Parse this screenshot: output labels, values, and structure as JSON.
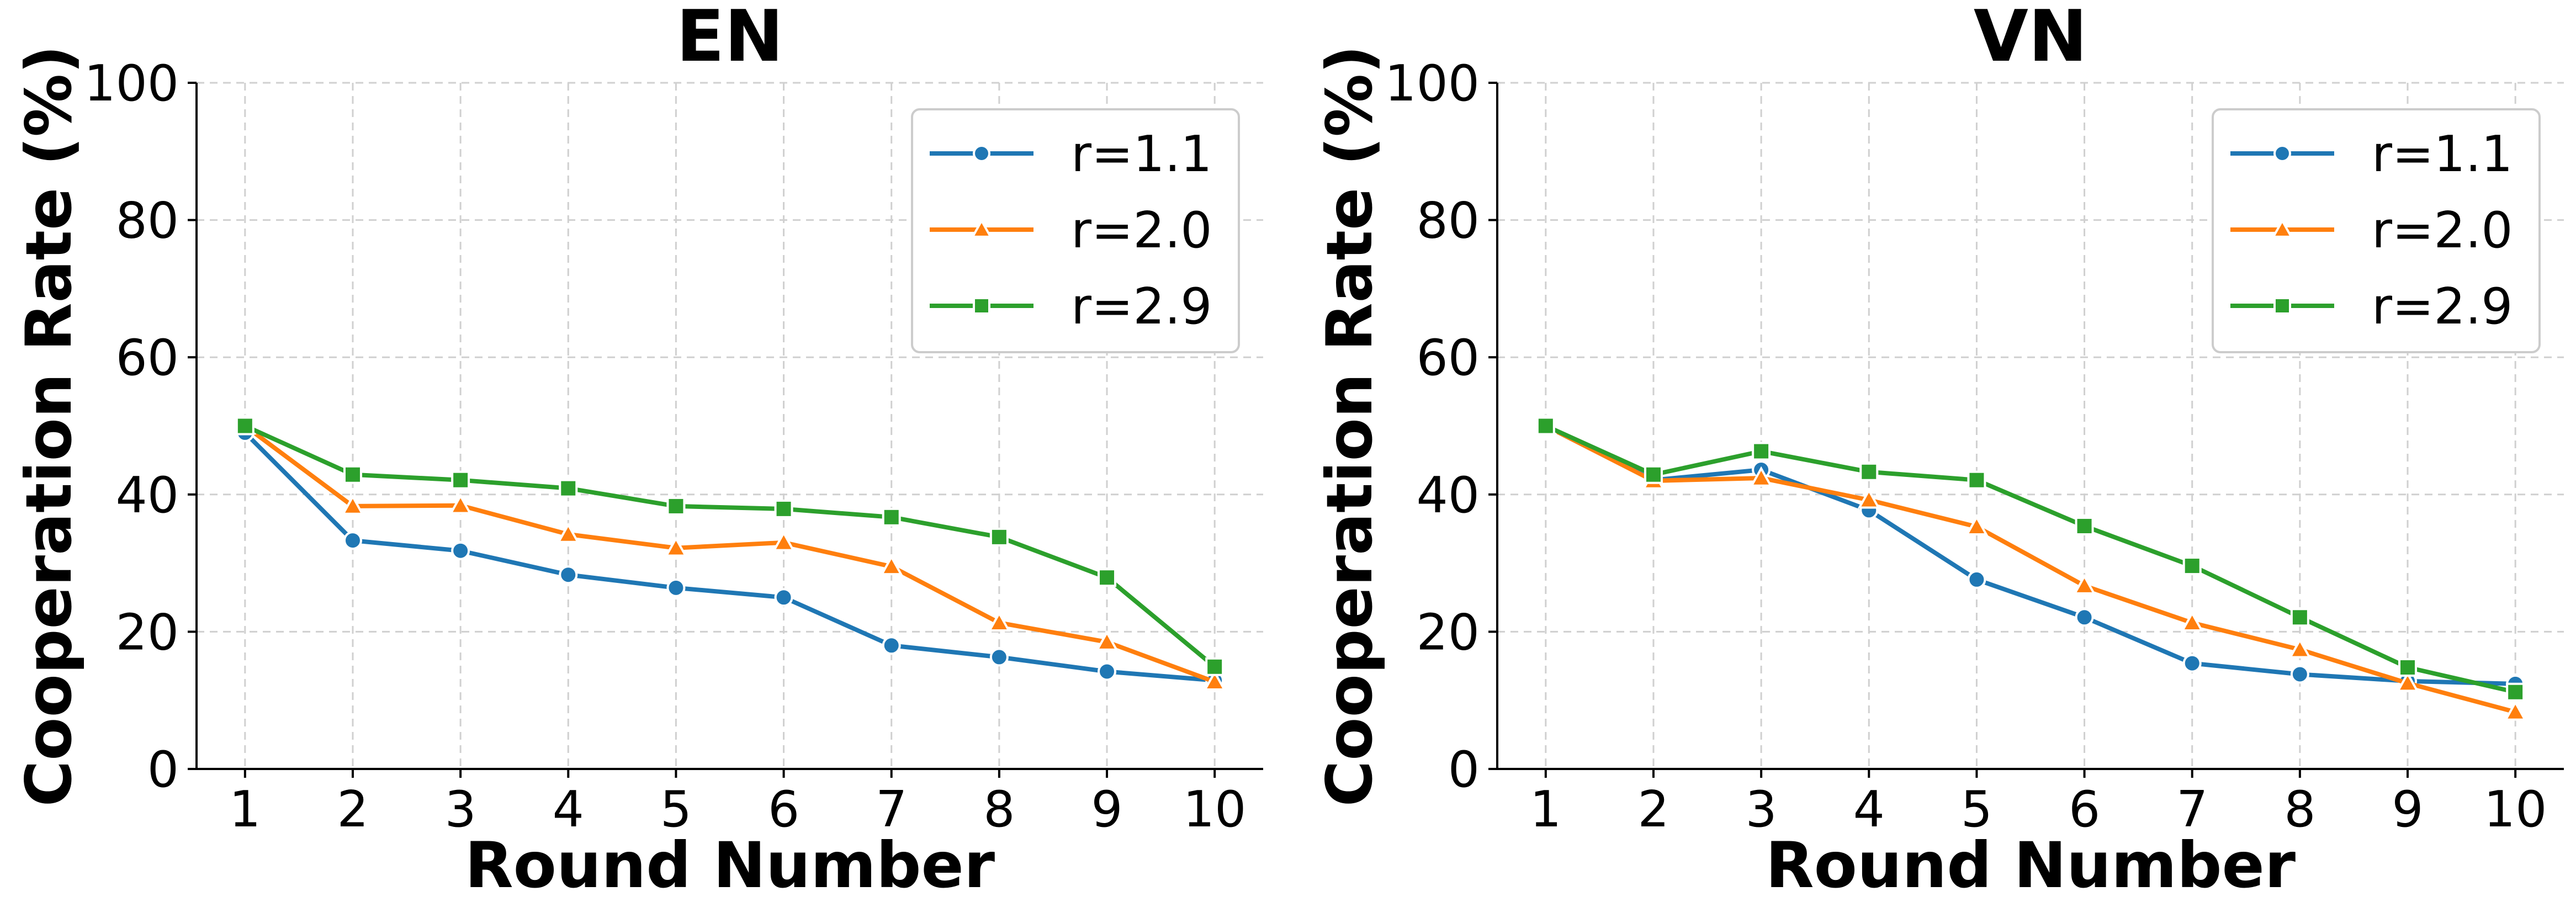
{
  "chart_data": [
    {
      "type": "line",
      "title": "EN",
      "xlabel": "Round Number",
      "ylabel": "Cooperation Rate (%)",
      "x": [
        1,
        2,
        3,
        4,
        5,
        6,
        7,
        8,
        9,
        10
      ],
      "xlim": [
        0.55,
        10.45
      ],
      "ylim": [
        0,
        100
      ],
      "yticks": [
        0,
        20,
        40,
        60,
        80,
        100
      ],
      "grid": true,
      "legend_position": "top-right",
      "series": [
        {
          "name": "r=1.1",
          "color": "#1f77b4",
          "marker": "circle",
          "values": [
            49.0,
            33.3,
            31.8,
            28.3,
            26.4,
            25.0,
            18.0,
            16.3,
            14.2,
            12.9
          ]
        },
        {
          "name": "r=2.0",
          "color": "#ff7f0e",
          "marker": "triangle",
          "values": [
            50.0,
            38.3,
            38.4,
            34.2,
            32.2,
            33.0,
            29.5,
            21.3,
            18.5,
            12.7
          ]
        },
        {
          "name": "r=2.9",
          "color": "#2ca02c",
          "marker": "square",
          "values": [
            50.0,
            42.9,
            42.1,
            40.9,
            38.3,
            37.9,
            36.7,
            33.8,
            27.9,
            14.9
          ]
        }
      ]
    },
    {
      "type": "line",
      "title": "VN",
      "xlabel": "Round Number",
      "ylabel": "Cooperation Rate (%)",
      "x": [
        1,
        2,
        3,
        4,
        5,
        6,
        7,
        8,
        9,
        10
      ],
      "xlim": [
        0.55,
        10.45
      ],
      "ylim": [
        0,
        100
      ],
      "yticks": [
        0,
        20,
        40,
        60,
        80,
        100
      ],
      "grid": true,
      "legend_position": "top-right",
      "series": [
        {
          "name": "r=1.1",
          "color": "#1f77b4",
          "marker": "circle",
          "values": [
            50.0,
            42.1,
            43.6,
            37.7,
            27.6,
            22.1,
            15.4,
            13.8,
            12.8,
            12.4
          ]
        },
        {
          "name": "r=2.0",
          "color": "#ff7f0e",
          "marker": "triangle",
          "values": [
            50.0,
            42.0,
            42.4,
            39.2,
            35.3,
            26.7,
            21.3,
            17.4,
            12.5,
            8.3
          ]
        },
        {
          "name": "r=2.9",
          "color": "#2ca02c",
          "marker": "square",
          "values": [
            50.0,
            42.9,
            46.3,
            43.3,
            42.1,
            35.4,
            29.6,
            22.1,
            14.8,
            11.2
          ]
        }
      ]
    }
  ]
}
